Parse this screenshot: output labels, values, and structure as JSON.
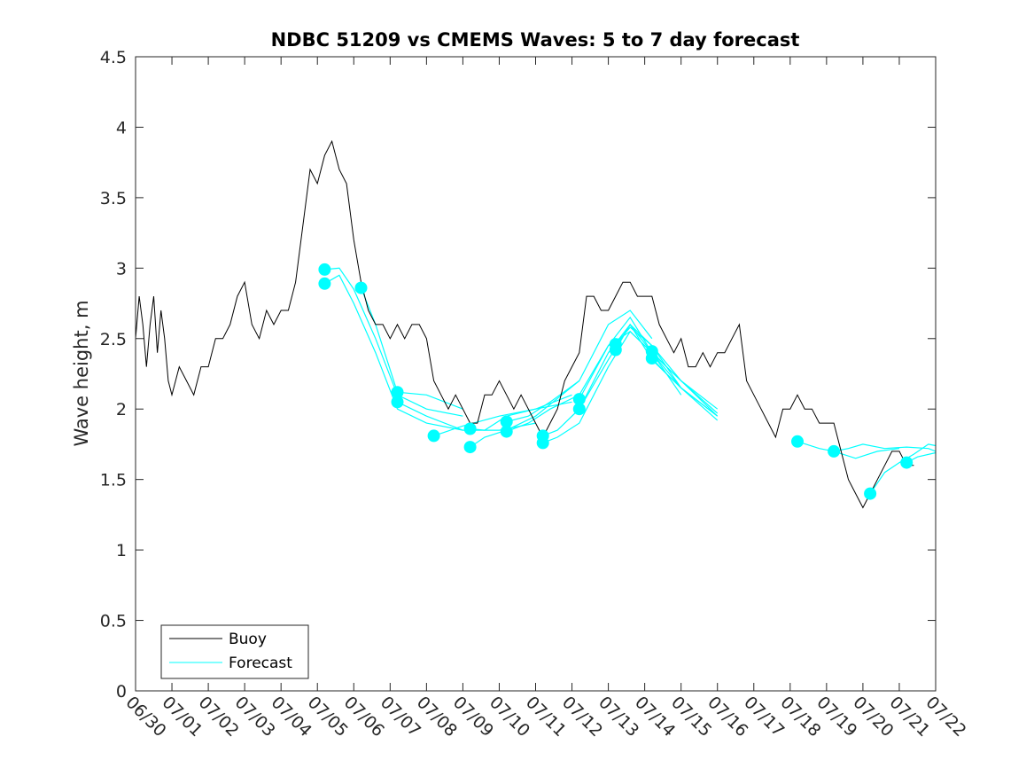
{
  "chart_data": {
    "type": "line",
    "title": "NDBC 51209 vs CMEMS Waves: 5 to 7 day forecast",
    "xlabel": "",
    "ylabel": "Wave height, m",
    "xlim": [
      "06/30",
      "07/22"
    ],
    "ylim": [
      0,
      4.5
    ],
    "x_tick_labels": [
      "06/30",
      "07/01",
      "07/02",
      "07/03",
      "07/04",
      "07/05",
      "07/06",
      "07/07",
      "07/08",
      "07/09",
      "07/10",
      "07/11",
      "07/12",
      "07/13",
      "07/14",
      "07/15",
      "07/16",
      "07/17",
      "07/18",
      "07/19",
      "07/20",
      "07/21",
      "07/22"
    ],
    "y_tick_labels": [
      "0",
      "0.5",
      "1",
      "1.5",
      "2",
      "2.5",
      "3",
      "3.5",
      "4",
      "4.5"
    ],
    "grid": false,
    "legend": {
      "placement": "bottom-left",
      "entries": [
        "Buoy",
        "Forecast"
      ]
    },
    "colors": {
      "buoy": "#000000",
      "forecast": "#00ffff"
    },
    "buoy_points": [
      [
        0,
        2.5
      ],
      [
        0.1,
        2.8
      ],
      [
        0.2,
        2.6
      ],
      [
        0.3,
        2.3
      ],
      [
        0.4,
        2.6
      ],
      [
        0.5,
        2.8
      ],
      [
        0.6,
        2.4
      ],
      [
        0.7,
        2.7
      ],
      [
        0.8,
        2.5
      ],
      [
        0.9,
        2.2
      ],
      [
        1.0,
        2.1
      ],
      [
        1.2,
        2.3
      ],
      [
        1.4,
        2.2
      ],
      [
        1.6,
        2.1
      ],
      [
        1.8,
        2.3
      ],
      [
        2.0,
        2.3
      ],
      [
        2.2,
        2.5
      ],
      [
        2.4,
        2.5
      ],
      [
        2.6,
        2.6
      ],
      [
        2.8,
        2.8
      ],
      [
        3.0,
        2.9
      ],
      [
        3.2,
        2.6
      ],
      [
        3.4,
        2.5
      ],
      [
        3.6,
        2.7
      ],
      [
        3.8,
        2.6
      ],
      [
        4.0,
        2.7
      ],
      [
        4.2,
        2.7
      ],
      [
        4.4,
        2.9
      ],
      [
        4.6,
        3.3
      ],
      [
        4.8,
        3.7
      ],
      [
        5.0,
        3.6
      ],
      [
        5.2,
        3.8
      ],
      [
        5.4,
        3.9
      ],
      [
        5.6,
        3.7
      ],
      [
        5.8,
        3.6
      ],
      [
        6.0,
        3.2
      ],
      [
        6.2,
        2.9
      ],
      [
        6.4,
        2.7
      ],
      [
        6.6,
        2.6
      ],
      [
        6.8,
        2.6
      ],
      [
        7.0,
        2.5
      ],
      [
        7.2,
        2.6
      ],
      [
        7.4,
        2.5
      ],
      [
        7.6,
        2.6
      ],
      [
        7.8,
        2.6
      ],
      [
        8.0,
        2.5
      ],
      [
        8.2,
        2.2
      ],
      [
        8.4,
        2.1
      ],
      [
        8.6,
        2.0
      ],
      [
        8.8,
        2.1
      ],
      [
        9.0,
        2.0
      ],
      [
        9.2,
        1.9
      ],
      [
        9.4,
        1.9
      ],
      [
        9.6,
        2.1
      ],
      [
        9.8,
        2.1
      ],
      [
        10.0,
        2.2
      ],
      [
        10.2,
        2.1
      ],
      [
        10.4,
        2.0
      ],
      [
        10.6,
        2.1
      ],
      [
        10.8,
        2.0
      ],
      [
        11.0,
        1.9
      ],
      [
        11.2,
        1.8
      ],
      [
        11.4,
        1.9
      ],
      [
        11.6,
        2.0
      ],
      [
        11.8,
        2.2
      ],
      [
        12.0,
        2.3
      ],
      [
        12.2,
        2.4
      ],
      [
        12.4,
        2.8
      ],
      [
        12.6,
        2.8
      ],
      [
        12.8,
        2.7
      ],
      [
        13.0,
        2.7
      ],
      [
        13.2,
        2.8
      ],
      [
        13.4,
        2.9
      ],
      [
        13.6,
        2.9
      ],
      [
        13.8,
        2.8
      ],
      [
        14.0,
        2.8
      ],
      [
        14.2,
        2.8
      ],
      [
        14.4,
        2.6
      ],
      [
        14.6,
        2.5
      ],
      [
        14.8,
        2.4
      ],
      [
        15.0,
        2.5
      ],
      [
        15.2,
        2.3
      ],
      [
        15.4,
        2.3
      ],
      [
        15.6,
        2.4
      ],
      [
        15.8,
        2.3
      ],
      [
        16.0,
        2.4
      ],
      [
        16.2,
        2.4
      ],
      [
        16.4,
        2.5
      ],
      [
        16.6,
        2.6
      ],
      [
        16.8,
        2.2
      ],
      [
        17.0,
        2.1
      ],
      [
        17.2,
        2.0
      ],
      [
        17.4,
        1.9
      ],
      [
        17.6,
        1.8
      ],
      [
        17.8,
        2.0
      ],
      [
        18.0,
        2.0
      ],
      [
        18.2,
        2.1
      ],
      [
        18.4,
        2.0
      ],
      [
        18.6,
        2.0
      ],
      [
        18.8,
        1.9
      ],
      [
        19.0,
        1.9
      ],
      [
        19.2,
        1.9
      ],
      [
        19.4,
        1.7
      ],
      [
        19.6,
        1.5
      ],
      [
        19.8,
        1.4
      ],
      [
        20.0,
        1.3
      ],
      [
        20.2,
        1.4
      ],
      [
        20.4,
        1.5
      ],
      [
        20.6,
        1.6
      ],
      [
        20.8,
        1.7
      ],
      [
        21.0,
        1.7
      ],
      [
        21.2,
        1.6
      ],
      [
        21.4,
        1.6
      ]
    ],
    "forecast_series": [
      [
        [
          5.2,
          2.89
        ],
        [
          5.6,
          2.95
        ],
        [
          6.0,
          2.75
        ],
        [
          6.6,
          2.4
        ],
        [
          7.2,
          2.0
        ],
        [
          8.0,
          1.9
        ],
        [
          9.0,
          1.85
        ]
      ],
      [
        [
          5.2,
          2.99
        ],
        [
          5.6,
          3.0
        ],
        [
          6.0,
          2.85
        ],
        [
          6.6,
          2.5
        ],
        [
          7.2,
          2.1
        ],
        [
          8.0,
          2.0
        ],
        [
          9.0,
          1.95
        ]
      ],
      [
        [
          6.2,
          2.86
        ],
        [
          6.6,
          2.6
        ],
        [
          7.2,
          2.12
        ],
        [
          8.0,
          2.1
        ],
        [
          9.0,
          2.0
        ]
      ],
      [
        [
          7.2,
          2.05
        ],
        [
          8.0,
          1.95
        ],
        [
          9.0,
          1.85
        ],
        [
          10.0,
          1.85
        ],
        [
          11.0,
          1.9
        ]
      ],
      [
        [
          8.2,
          1.81
        ],
        [
          9.0,
          1.88
        ],
        [
          10.0,
          1.95
        ],
        [
          11.0,
          2.0
        ],
        [
          12.0,
          2.05
        ]
      ],
      [
        [
          9.2,
          1.86
        ],
        [
          9.6,
          1.85
        ],
        [
          10.2,
          1.95
        ],
        [
          11.0,
          2.0
        ],
        [
          12.0,
          2.1
        ]
      ],
      [
        [
          9.2,
          1.73
        ],
        [
          9.6,
          1.8
        ],
        [
          10.2,
          1.85
        ],
        [
          11.0,
          1.95
        ],
        [
          12.2,
          2.2
        ]
      ],
      [
        [
          10.2,
          1.84
        ],
        [
          10.8,
          1.9
        ],
        [
          11.4,
          2.0
        ],
        [
          12.2,
          2.1
        ],
        [
          13.0,
          2.45
        ],
        [
          13.6,
          2.55
        ],
        [
          14.2,
          2.4
        ]
      ],
      [
        [
          10.2,
          1.91
        ],
        [
          10.8,
          1.95
        ],
        [
          11.4,
          2.05
        ],
        [
          12.2,
          2.2
        ],
        [
          13.0,
          2.6
        ],
        [
          13.6,
          2.7
        ],
        [
          14.2,
          2.5
        ]
      ],
      [
        [
          11.2,
          1.76
        ],
        [
          11.6,
          1.8
        ],
        [
          12.2,
          1.9
        ],
        [
          13.0,
          2.3
        ],
        [
          13.6,
          2.55
        ],
        [
          14.2,
          2.4
        ],
        [
          15.0,
          2.1
        ]
      ],
      [
        [
          11.2,
          1.81
        ],
        [
          11.6,
          1.85
        ],
        [
          12.2,
          2.0
        ],
        [
          13.0,
          2.35
        ],
        [
          13.6,
          2.6
        ],
        [
          14.2,
          2.45
        ],
        [
          15.0,
          2.15
        ]
      ],
      [
        [
          12.2,
          2.0
        ],
        [
          13.0,
          2.4
        ],
        [
          13.6,
          2.6
        ],
        [
          14.2,
          2.35
        ],
        [
          15.0,
          2.15
        ],
        [
          16.0,
          1.95
        ]
      ],
      [
        [
          12.2,
          2.07
        ],
        [
          13.0,
          2.45
        ],
        [
          13.6,
          2.65
        ],
        [
          14.2,
          2.4
        ],
        [
          15.0,
          2.2
        ],
        [
          16.0,
          2.0
        ]
      ],
      [
        [
          13.2,
          2.42
        ],
        [
          13.6,
          2.6
        ],
        [
          14.2,
          2.4
        ],
        [
          15.0,
          2.15
        ],
        [
          16.0,
          1.92
        ]
      ],
      [
        [
          13.2,
          2.46
        ],
        [
          13.6,
          2.58
        ],
        [
          14.2,
          2.45
        ],
        [
          15.0,
          2.2
        ],
        [
          16.0,
          1.95
        ]
      ],
      [
        [
          14.2,
          2.36
        ],
        [
          14.6,
          2.25
        ],
        [
          15.0,
          2.15
        ],
        [
          16.0,
          1.95
        ]
      ],
      [
        [
          14.2,
          2.41
        ],
        [
          14.6,
          2.3
        ],
        [
          15.0,
          2.2
        ],
        [
          16.0,
          1.97
        ]
      ],
      [
        [
          18.2,
          1.77
        ],
        [
          18.8,
          1.72
        ],
        [
          19.2,
          1.7
        ],
        [
          19.8,
          1.65
        ],
        [
          20.4,
          1.7
        ],
        [
          21.0,
          1.72
        ]
      ],
      [
        [
          19.2,
          1.7
        ],
        [
          19.6,
          1.72
        ],
        [
          20.0,
          1.75
        ],
        [
          20.6,
          1.72
        ],
        [
          21.2,
          1.73
        ],
        [
          21.8,
          1.72
        ],
        [
          22.0,
          1.7
        ]
      ],
      [
        [
          20.2,
          1.4
        ],
        [
          20.6,
          1.55
        ],
        [
          21.0,
          1.62
        ],
        [
          21.4,
          1.68
        ],
        [
          21.8,
          1.75
        ],
        [
          22.0,
          1.74
        ]
      ],
      [
        [
          21.2,
          1.62
        ],
        [
          21.5,
          1.66
        ],
        [
          22.0,
          1.69
        ]
      ]
    ],
    "forecast_markers": [
      [
        5.2,
        2.89
      ],
      [
        5.2,
        2.99
      ],
      [
        6.2,
        2.86
      ],
      [
        7.2,
        2.05
      ],
      [
        7.2,
        2.12
      ],
      [
        8.2,
        1.81
      ],
      [
        9.2,
        1.86
      ],
      [
        9.2,
        1.73
      ],
      [
        10.2,
        1.84
      ],
      [
        10.2,
        1.91
      ],
      [
        11.2,
        1.76
      ],
      [
        11.2,
        1.81
      ],
      [
        12.2,
        2.0
      ],
      [
        12.2,
        2.07
      ],
      [
        13.2,
        2.42
      ],
      [
        13.2,
        2.46
      ],
      [
        14.2,
        2.36
      ],
      [
        14.2,
        2.41
      ],
      [
        18.2,
        1.77
      ],
      [
        19.2,
        1.7
      ],
      [
        20.2,
        1.4
      ],
      [
        21.2,
        1.62
      ]
    ]
  }
}
